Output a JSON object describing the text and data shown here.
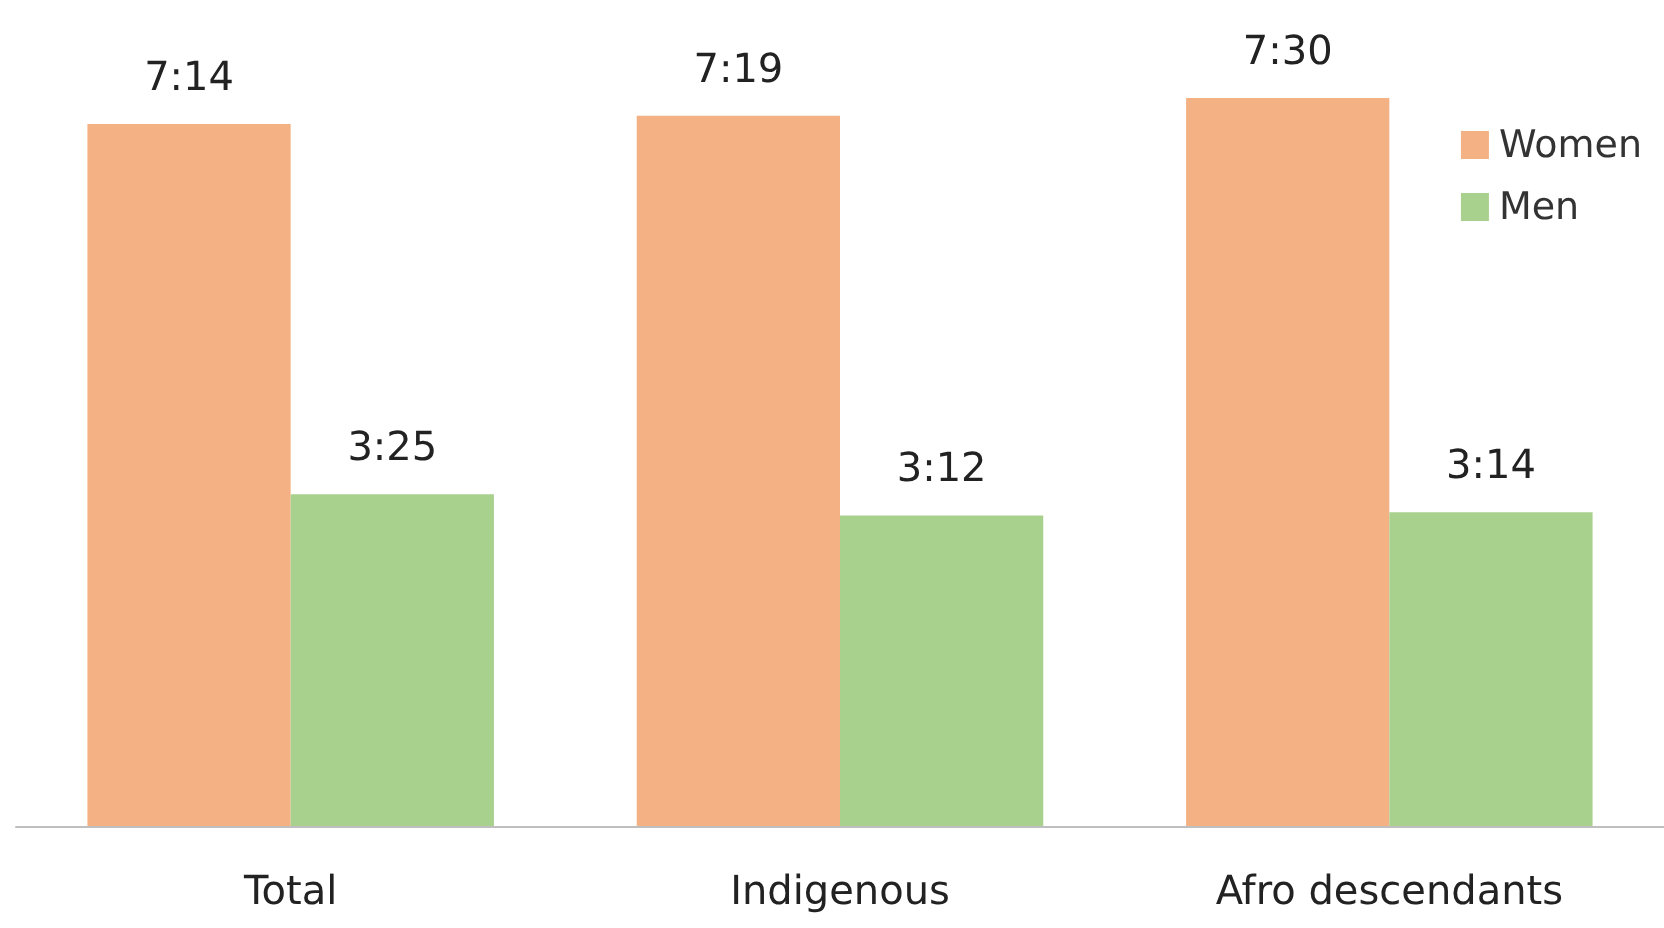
{
  "chart_data": {
    "type": "bar",
    "categories": [
      "Total",
      "Indigenous",
      "Afro descendants"
    ],
    "series": [
      {
        "name": "Women",
        "color": "#f4b183",
        "values": [
          434,
          439,
          450
        ],
        "value_labels": [
          "7:14",
          "7:19",
          "7:30"
        ]
      },
      {
        "name": "Men",
        "color": "#a9d18e",
        "values": [
          205,
          192,
          194
        ],
        "value_labels": [
          "3:25",
          "3:12",
          "3:14"
        ]
      }
    ],
    "legend": "top right",
    "grid": false
  }
}
